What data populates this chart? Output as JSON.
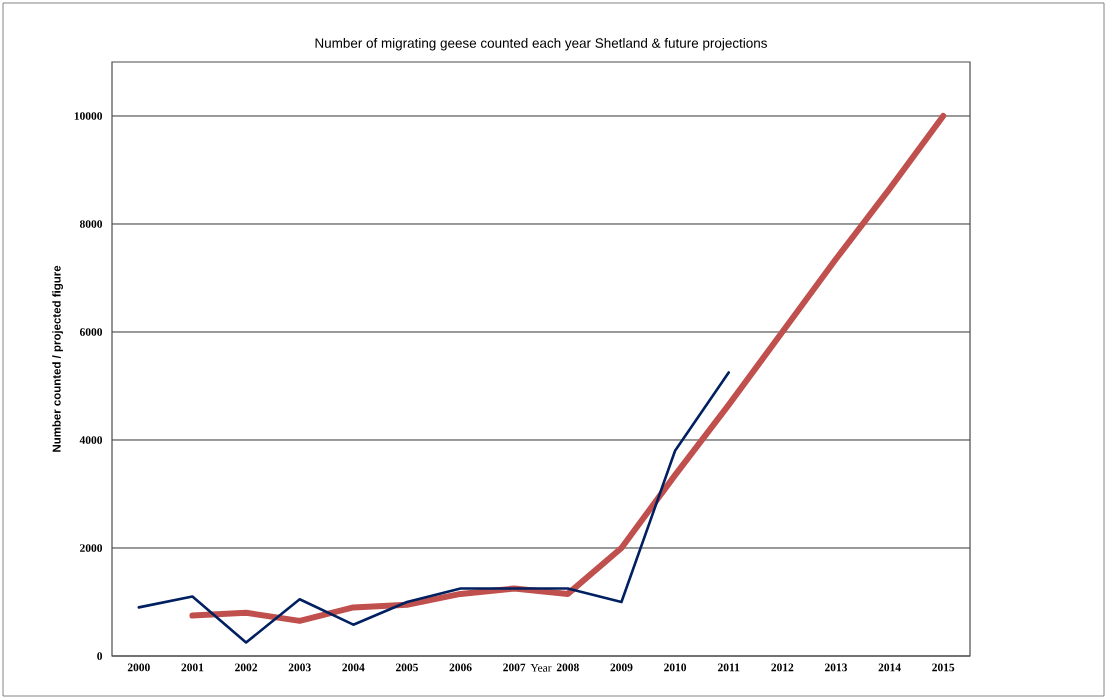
{
  "chart_data": {
    "type": "line",
    "title": "Number of migrating geese counted each year Shetland & future projections",
    "xlabel": "Year",
    "ylabel": "Number counted / projected figure",
    "categories": [
      "2000",
      "2001",
      "2002",
      "2003",
      "2004",
      "2005",
      "2006",
      "2007",
      "2008",
      "2009",
      "2010",
      "2011",
      "2012",
      "2013",
      "2014",
      "2015"
    ],
    "series": [
      {
        "color": "#c0504d",
        "values": [
          null,
          750,
          800,
          650,
          900,
          950,
          1150,
          1250,
          1150,
          2000,
          3350,
          4650,
          6000,
          7350,
          8650,
          10000
        ]
      },
      {
        "color": "#002060",
        "values": [
          900,
          1100,
          250,
          1050,
          580,
          1000,
          1250,
          1250,
          1250,
          1000,
          3800,
          5250,
          null,
          null,
          null,
          null
        ]
      }
    ],
    "ylim": [
      0,
      11000
    ],
    "yticks": [
      0,
      2000,
      4000,
      6000,
      8000,
      10000
    ],
    "grid": "y",
    "line_style": "solid"
  }
}
